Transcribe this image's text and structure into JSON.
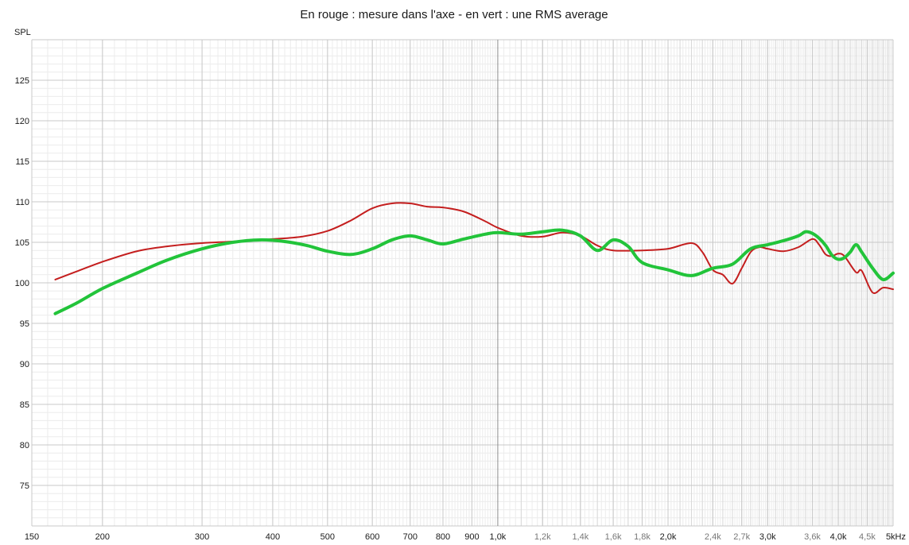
{
  "chart_data": {
    "type": "line",
    "title": "En rouge : mesure dans l'axe - en vert : une RMS average",
    "ylabel": "SPL",
    "xlabel": "",
    "x_scale": "log",
    "xlim": [
      150,
      5000
    ],
    "ylim": [
      70,
      130
    ],
    "grid": true,
    "legend": "none",
    "y_ticks": [
      {
        "value": 75,
        "label": "75"
      },
      {
        "value": 80,
        "label": "80"
      },
      {
        "value": 85,
        "label": "85"
      },
      {
        "value": 90,
        "label": "90"
      },
      {
        "value": 95,
        "label": "95"
      },
      {
        "value": 100,
        "label": "100"
      },
      {
        "value": 105,
        "label": "105"
      },
      {
        "value": 110,
        "label": "110"
      },
      {
        "value": 115,
        "label": "115"
      },
      {
        "value": 120,
        "label": "120"
      },
      {
        "value": 125,
        "label": "125"
      }
    ],
    "x_ticks": [
      {
        "value": 150,
        "label": "150",
        "style": "major"
      },
      {
        "value": 200,
        "label": "200",
        "style": "major"
      },
      {
        "value": 300,
        "label": "300",
        "style": "major"
      },
      {
        "value": 400,
        "label": "400",
        "style": "major"
      },
      {
        "value": 500,
        "label": "500",
        "style": "major"
      },
      {
        "value": 600,
        "label": "600",
        "style": "major"
      },
      {
        "value": 700,
        "label": "700",
        "style": "major"
      },
      {
        "value": 800,
        "label": "800",
        "style": "major"
      },
      {
        "value": 900,
        "label": "900",
        "style": "major"
      },
      {
        "value": 1000,
        "label": "1,0k",
        "style": "major"
      },
      {
        "value": 1200,
        "label": "1,2k",
        "style": "minor"
      },
      {
        "value": 1400,
        "label": "1,4k",
        "style": "minor"
      },
      {
        "value": 1600,
        "label": "1,6k",
        "style": "minor"
      },
      {
        "value": 1800,
        "label": "1,8k",
        "style": "minor"
      },
      {
        "value": 2000,
        "label": "2,0k",
        "style": "major"
      },
      {
        "value": 2400,
        "label": "2,4k",
        "style": "minor"
      },
      {
        "value": 2700,
        "label": "2,7k",
        "style": "minor"
      },
      {
        "value": 3000,
        "label": "3,0k",
        "style": "major"
      },
      {
        "value": 3600,
        "label": "3,6k",
        "style": "minor"
      },
      {
        "value": 4000,
        "label": "4,0k",
        "style": "major"
      },
      {
        "value": 4500,
        "label": "4,5k",
        "style": "minor"
      },
      {
        "value": 5000,
        "label": "5kHz",
        "style": "major"
      }
    ],
    "series": [
      {
        "color": "#c41e1e",
        "width": 2,
        "x": [
          165,
          180,
          200,
          230,
          260,
          300,
          340,
          400,
          450,
          500,
          550,
          600,
          650,
          700,
          750,
          800,
          870,
          950,
          1000,
          1100,
          1200,
          1300,
          1400,
          1500,
          1600,
          1800,
          2000,
          2200,
          2300,
          2400,
          2500,
          2600,
          2700,
          2800,
          2900,
          3000,
          3200,
          3400,
          3600,
          3700,
          3800,
          3900,
          4000,
          4100,
          4300,
          4400,
          4600,
          4800,
          5000
        ],
        "y": [
          100.4,
          101.4,
          102.6,
          103.9,
          104.5,
          104.9,
          105.1,
          105.4,
          105.7,
          106.4,
          107.7,
          109.2,
          109.8,
          109.8,
          109.4,
          109.3,
          108.8,
          107.6,
          106.8,
          105.8,
          105.7,
          106.2,
          105.8,
          104.6,
          104.0,
          104.0,
          104.2,
          104.9,
          103.8,
          101.6,
          101.0,
          99.9,
          101.8,
          103.8,
          104.4,
          104.2,
          103.9,
          104.4,
          105.4,
          104.7,
          103.5,
          103.3,
          103.6,
          103.3,
          101.3,
          101.5,
          98.8,
          99.4,
          99.2
        ]
      },
      {
        "color": "#22c43a",
        "width": 4,
        "x": [
          165,
          180,
          200,
          230,
          260,
          300,
          340,
          380,
          420,
          460,
          500,
          550,
          600,
          650,
          700,
          750,
          800,
          870,
          950,
          1000,
          1100,
          1200,
          1300,
          1400,
          1500,
          1600,
          1700,
          1800,
          2000,
          2200,
          2400,
          2600,
          2800,
          3000,
          3200,
          3400,
          3500,
          3600,
          3700,
          3800,
          3900,
          4000,
          4100,
          4200,
          4300,
          4400,
          4600,
          4800,
          5000
        ],
        "y": [
          96.2,
          97.5,
          99.3,
          101.2,
          102.8,
          104.2,
          105.0,
          105.3,
          105.1,
          104.6,
          103.9,
          103.5,
          104.2,
          105.3,
          105.8,
          105.3,
          104.8,
          105.4,
          106.0,
          106.2,
          106.0,
          106.3,
          106.5,
          105.8,
          104.0,
          105.3,
          104.5,
          102.5,
          101.6,
          100.9,
          101.8,
          102.3,
          104.2,
          104.7,
          105.2,
          105.8,
          106.3,
          106.1,
          105.5,
          104.6,
          103.4,
          102.9,
          103.1,
          103.8,
          104.7,
          103.8,
          101.8,
          100.4,
          101.2
        ]
      }
    ]
  }
}
